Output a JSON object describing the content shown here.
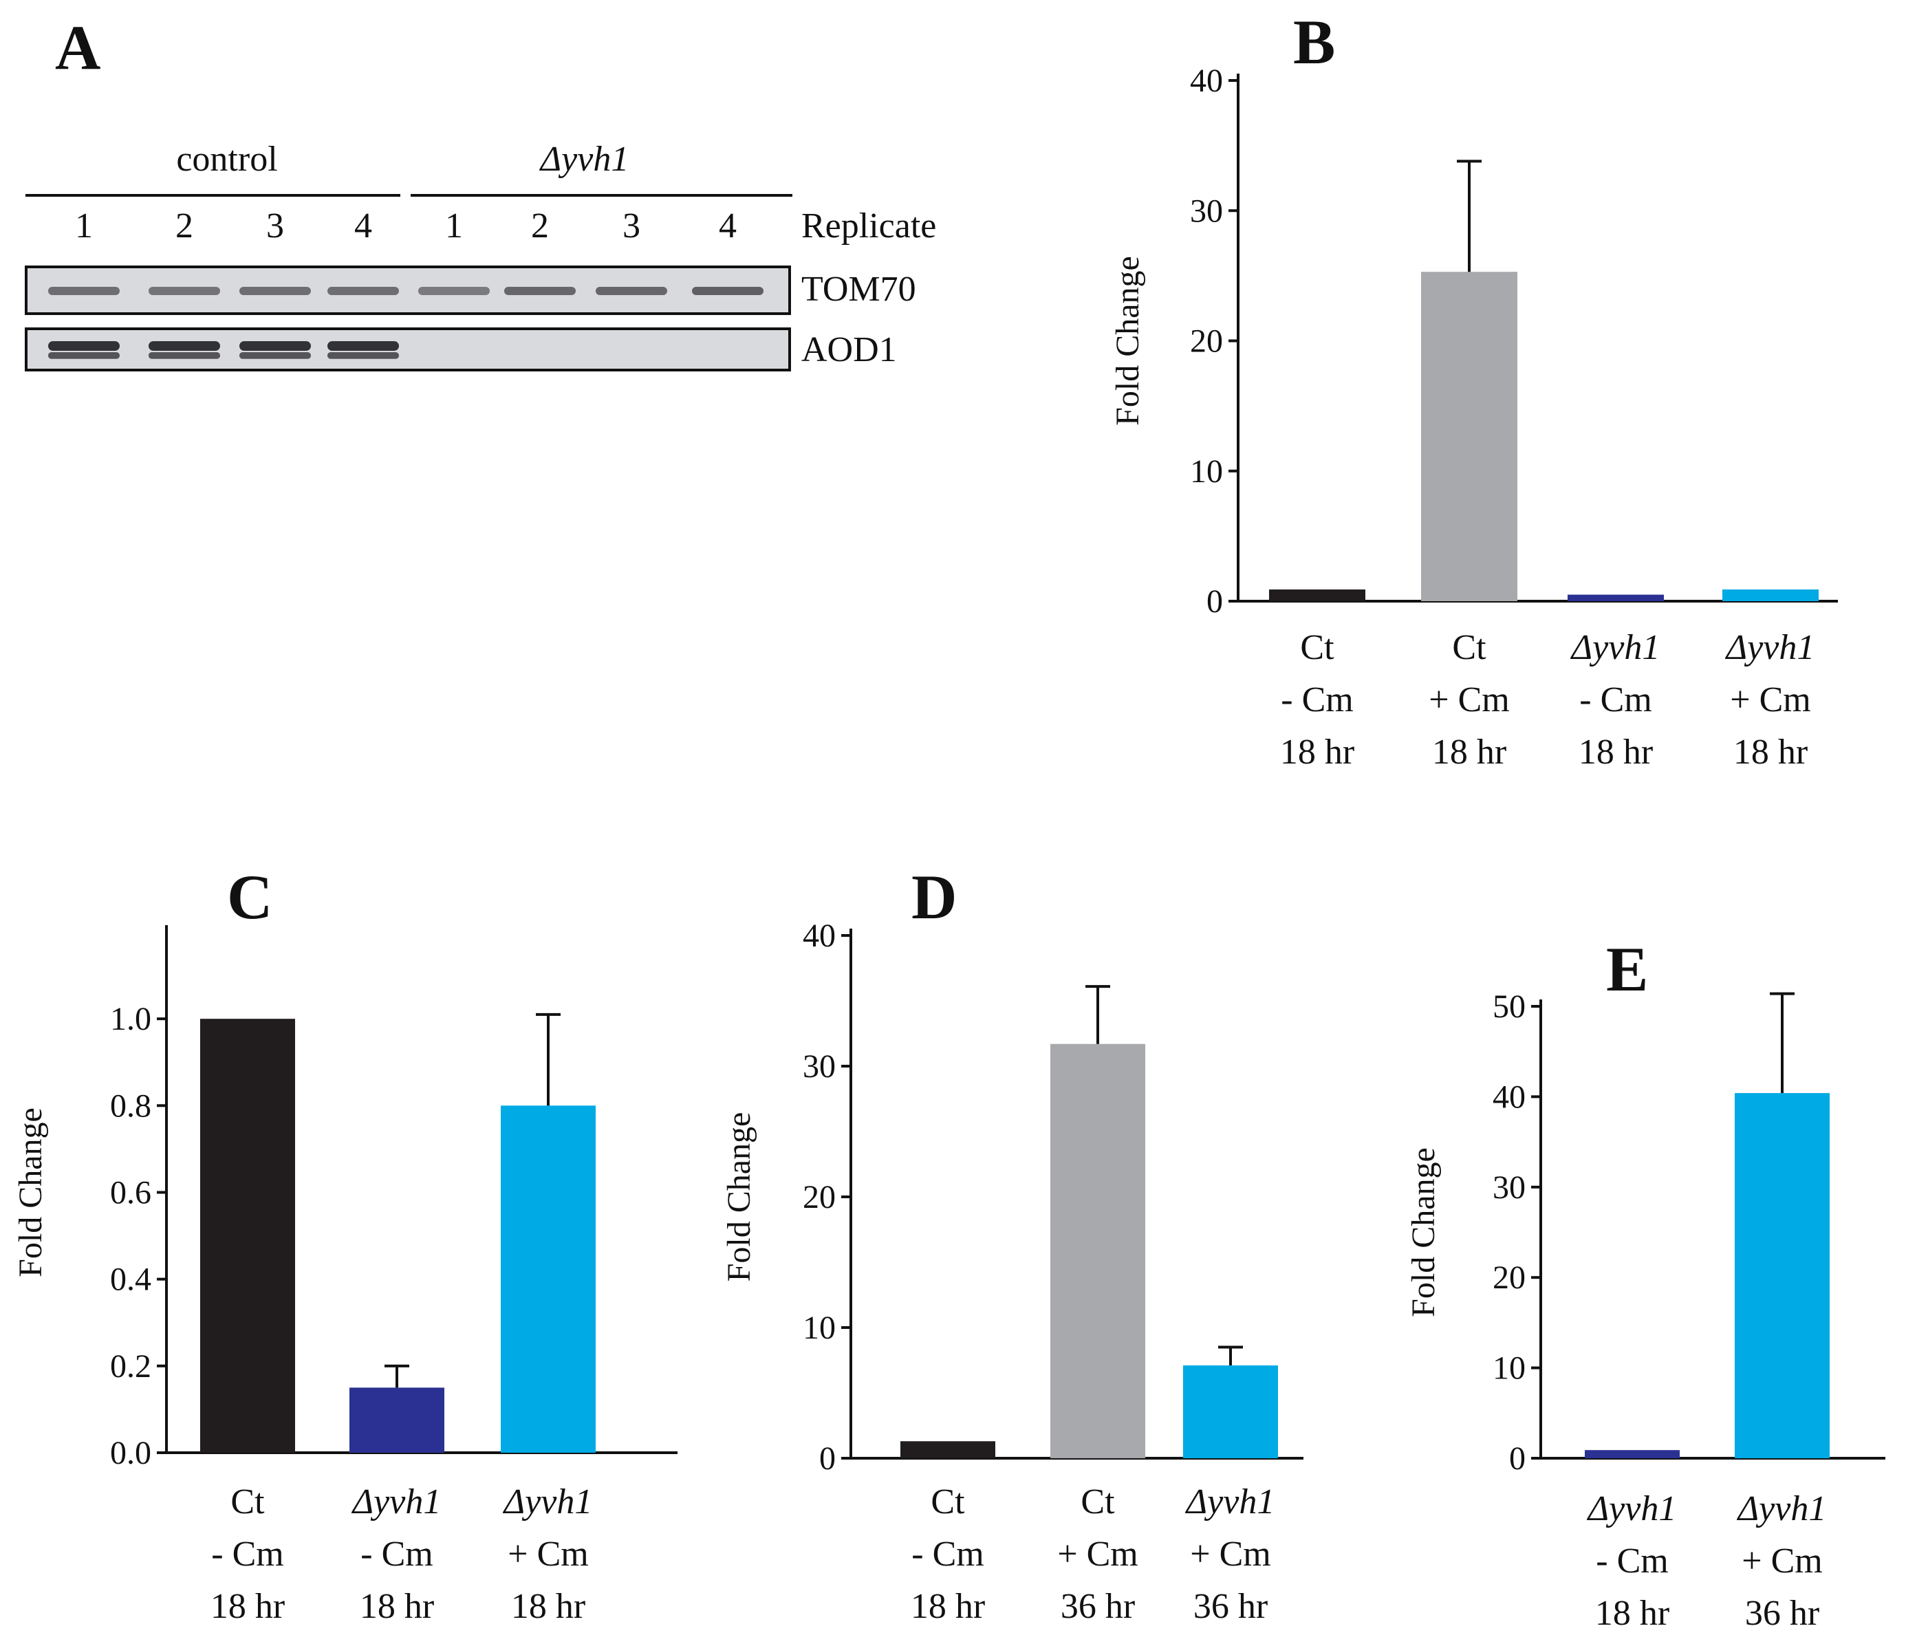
{
  "figure": {
    "panels": {
      "A": "A",
      "B": "B",
      "C": "C",
      "D": "D",
      "E": "E"
    }
  },
  "blot": {
    "groups": [
      {
        "label": "control",
        "italic": false
      },
      {
        "label": "Δyvh1",
        "italic": true
      }
    ],
    "replicate_header": "Replicate",
    "lanes": [
      "1",
      "2",
      "3",
      "4",
      "1",
      "2",
      "3",
      "4"
    ],
    "rows": [
      {
        "label": "TOM70",
        "band_strength": [
          0.55,
          0.5,
          0.55,
          0.55,
          0.45,
          0.6,
          0.6,
          0.65
        ]
      },
      {
        "label": "AOD1",
        "band_strength": [
          1.0,
          1.0,
          1.0,
          1.0,
          0,
          0,
          0,
          0
        ]
      }
    ]
  },
  "colors": {
    "black": "#211d1e",
    "gray": "#a7a9ac",
    "navy": "#2b3192",
    "cyan": "#00aae4"
  },
  "chart_data": [
    {
      "panel": "B",
      "type": "bar",
      "title": "",
      "xlabel": "",
      "ylabel": "Fold Change",
      "ylim": [
        0,
        40
      ],
      "yticks": [
        "0",
        "10",
        "20",
        "30",
        "40"
      ],
      "categories": [
        [
          "Ct",
          "- Cm",
          "18 hr"
        ],
        [
          "Ct",
          "+ Cm",
          "18 hr"
        ],
        [
          "Δyvh1",
          "- Cm",
          "18 hr"
        ],
        [
          "Δyvh1",
          "+ Cm",
          "18 hr"
        ]
      ],
      "italic_first_line": [
        false,
        false,
        true,
        true
      ],
      "values": [
        0.9,
        25.3,
        0.5,
        0.9
      ],
      "errors": [
        0,
        8.5,
        0,
        0
      ],
      "colors": [
        "#211d1e",
        "#a7a9ac",
        "#2b3192",
        "#00aae4"
      ]
    },
    {
      "panel": "C",
      "type": "bar",
      "title": "",
      "xlabel": "",
      "ylabel": "Fold Change",
      "ylim": [
        0,
        1.2
      ],
      "yticks": [
        "0.0",
        "0.2",
        "0.4",
        "0.6",
        "0.8",
        "1.0"
      ],
      "categories": [
        [
          "Ct",
          "- Cm",
          "18 hr"
        ],
        [
          "Δyvh1",
          "- Cm",
          "18 hr"
        ],
        [
          "Δyvh1",
          "+ Cm",
          "18 hr"
        ]
      ],
      "italic_first_line": [
        false,
        true,
        true
      ],
      "values": [
        1.0,
        0.15,
        0.8
      ],
      "errors": [
        0,
        0.05,
        0.21
      ],
      "colors": [
        "#211d1e",
        "#2b3192",
        "#00aae4"
      ]
    },
    {
      "panel": "D",
      "type": "bar",
      "title": "",
      "xlabel": "",
      "ylabel": "Fold Change",
      "ylim": [
        0,
        40
      ],
      "yticks": [
        "0",
        "10",
        "20",
        "30",
        "40"
      ],
      "categories": [
        [
          "Ct",
          "- Cm",
          "18 hr"
        ],
        [
          "Ct",
          "+ Cm",
          "36 hr"
        ],
        [
          "Δyvh1",
          "+ Cm",
          "36 hr"
        ]
      ],
      "italic_first_line": [
        false,
        false,
        true
      ],
      "values": [
        1.3,
        31.7,
        7.1
      ],
      "errors": [
        0,
        4.4,
        1.4
      ],
      "colors": [
        "#211d1e",
        "#a7a9ac",
        "#00aae4"
      ]
    },
    {
      "panel": "E",
      "type": "bar",
      "title": "",
      "xlabel": "",
      "ylabel": "Fold Change",
      "ylim": [
        0,
        50
      ],
      "yticks": [
        "0",
        "10",
        "20",
        "30",
        "40",
        "50"
      ],
      "categories": [
        [
          "Δyvh1",
          "- Cm",
          "18 hr"
        ],
        [
          "Δyvh1",
          "+ Cm",
          "36 hr"
        ]
      ],
      "italic_first_line": [
        true,
        true
      ],
      "values": [
        0.9,
        40.4
      ],
      "errors": [
        0,
        11.0
      ],
      "colors": [
        "#2b3192",
        "#00aae4"
      ]
    }
  ]
}
